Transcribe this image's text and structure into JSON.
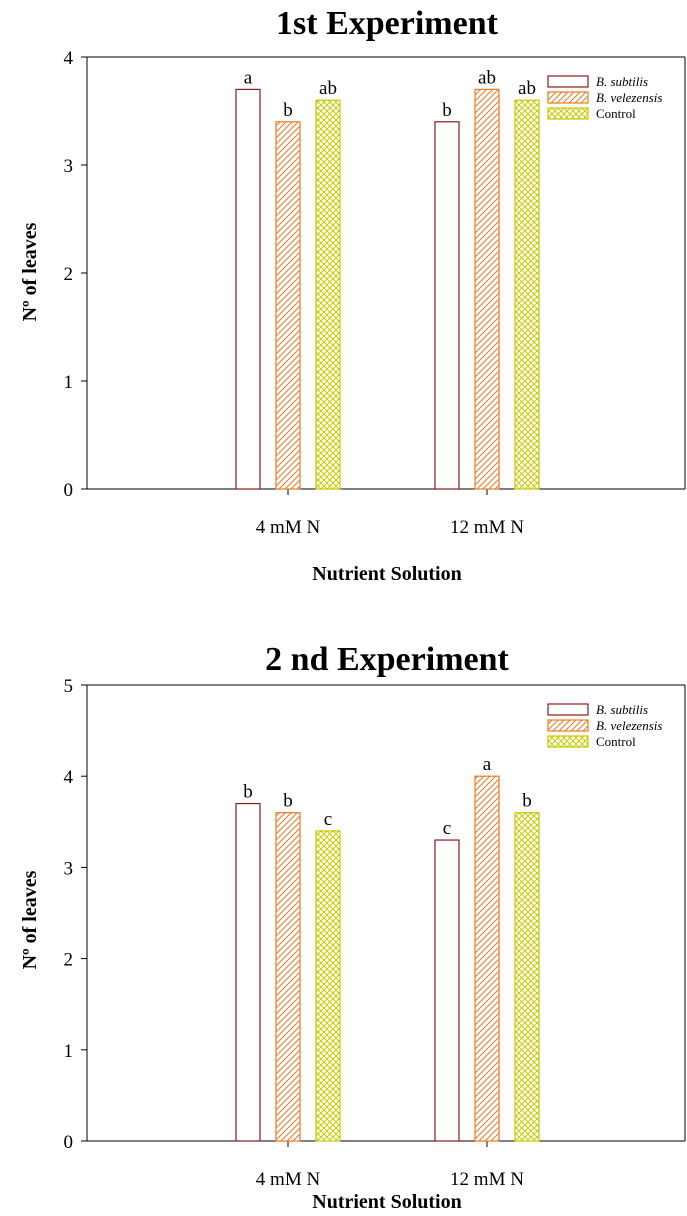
{
  "chart_data": [
    {
      "type": "bar",
      "title": "1st Experiment",
      "xlabel": "Nutrient Solution",
      "ylabel": "Nº of  leaves",
      "categories": [
        "4 mM N",
        "12 mM N"
      ],
      "ylim": [
        0,
        4
      ],
      "yticks": [
        0,
        1,
        2,
        3,
        4
      ],
      "grid": false,
      "legend_position": "top-right",
      "series": [
        {
          "name": "B. subtilis",
          "italic": true,
          "values": [
            3.7,
            3.4
          ],
          "letters": [
            "a",
            "b"
          ],
          "color": "#8b1a1a",
          "pattern": "none"
        },
        {
          "name": "B. velezensis",
          "italic": true,
          "values": [
            3.4,
            3.7
          ],
          "letters": [
            "b",
            "ab"
          ],
          "color": "#f07820",
          "pattern": "diagonal"
        },
        {
          "name": "Control",
          "italic": false,
          "values": [
            3.6,
            3.6
          ],
          "letters": [
            "ab",
            "ab"
          ],
          "color": "#c8c800",
          "pattern": "crosshatch"
        }
      ]
    },
    {
      "type": "bar",
      "title": "2 nd Experiment",
      "xlabel": "Nutrient Solution",
      "ylabel": "Nº of  leaves",
      "categories": [
        "4 mM N",
        "12 mM N"
      ],
      "ylim": [
        0,
        5
      ],
      "yticks": [
        0,
        1,
        2,
        3,
        4,
        5
      ],
      "grid": false,
      "legend_position": "top-right",
      "series": [
        {
          "name": "B. subtilis",
          "italic": true,
          "values": [
            3.7,
            3.3
          ],
          "letters": [
            "b",
            "c"
          ],
          "color": "#8b1a1a",
          "pattern": "none"
        },
        {
          "name": "B. velezensis",
          "italic": true,
          "values": [
            3.6,
            4.0
          ],
          "letters": [
            "b",
            "a"
          ],
          "color": "#f07820",
          "pattern": "diagonal"
        },
        {
          "name": "Control",
          "italic": false,
          "values": [
            3.4,
            3.6
          ],
          "letters": [
            "c",
            "b"
          ],
          "color": "#c8c800",
          "pattern": "crosshatch"
        }
      ]
    }
  ]
}
